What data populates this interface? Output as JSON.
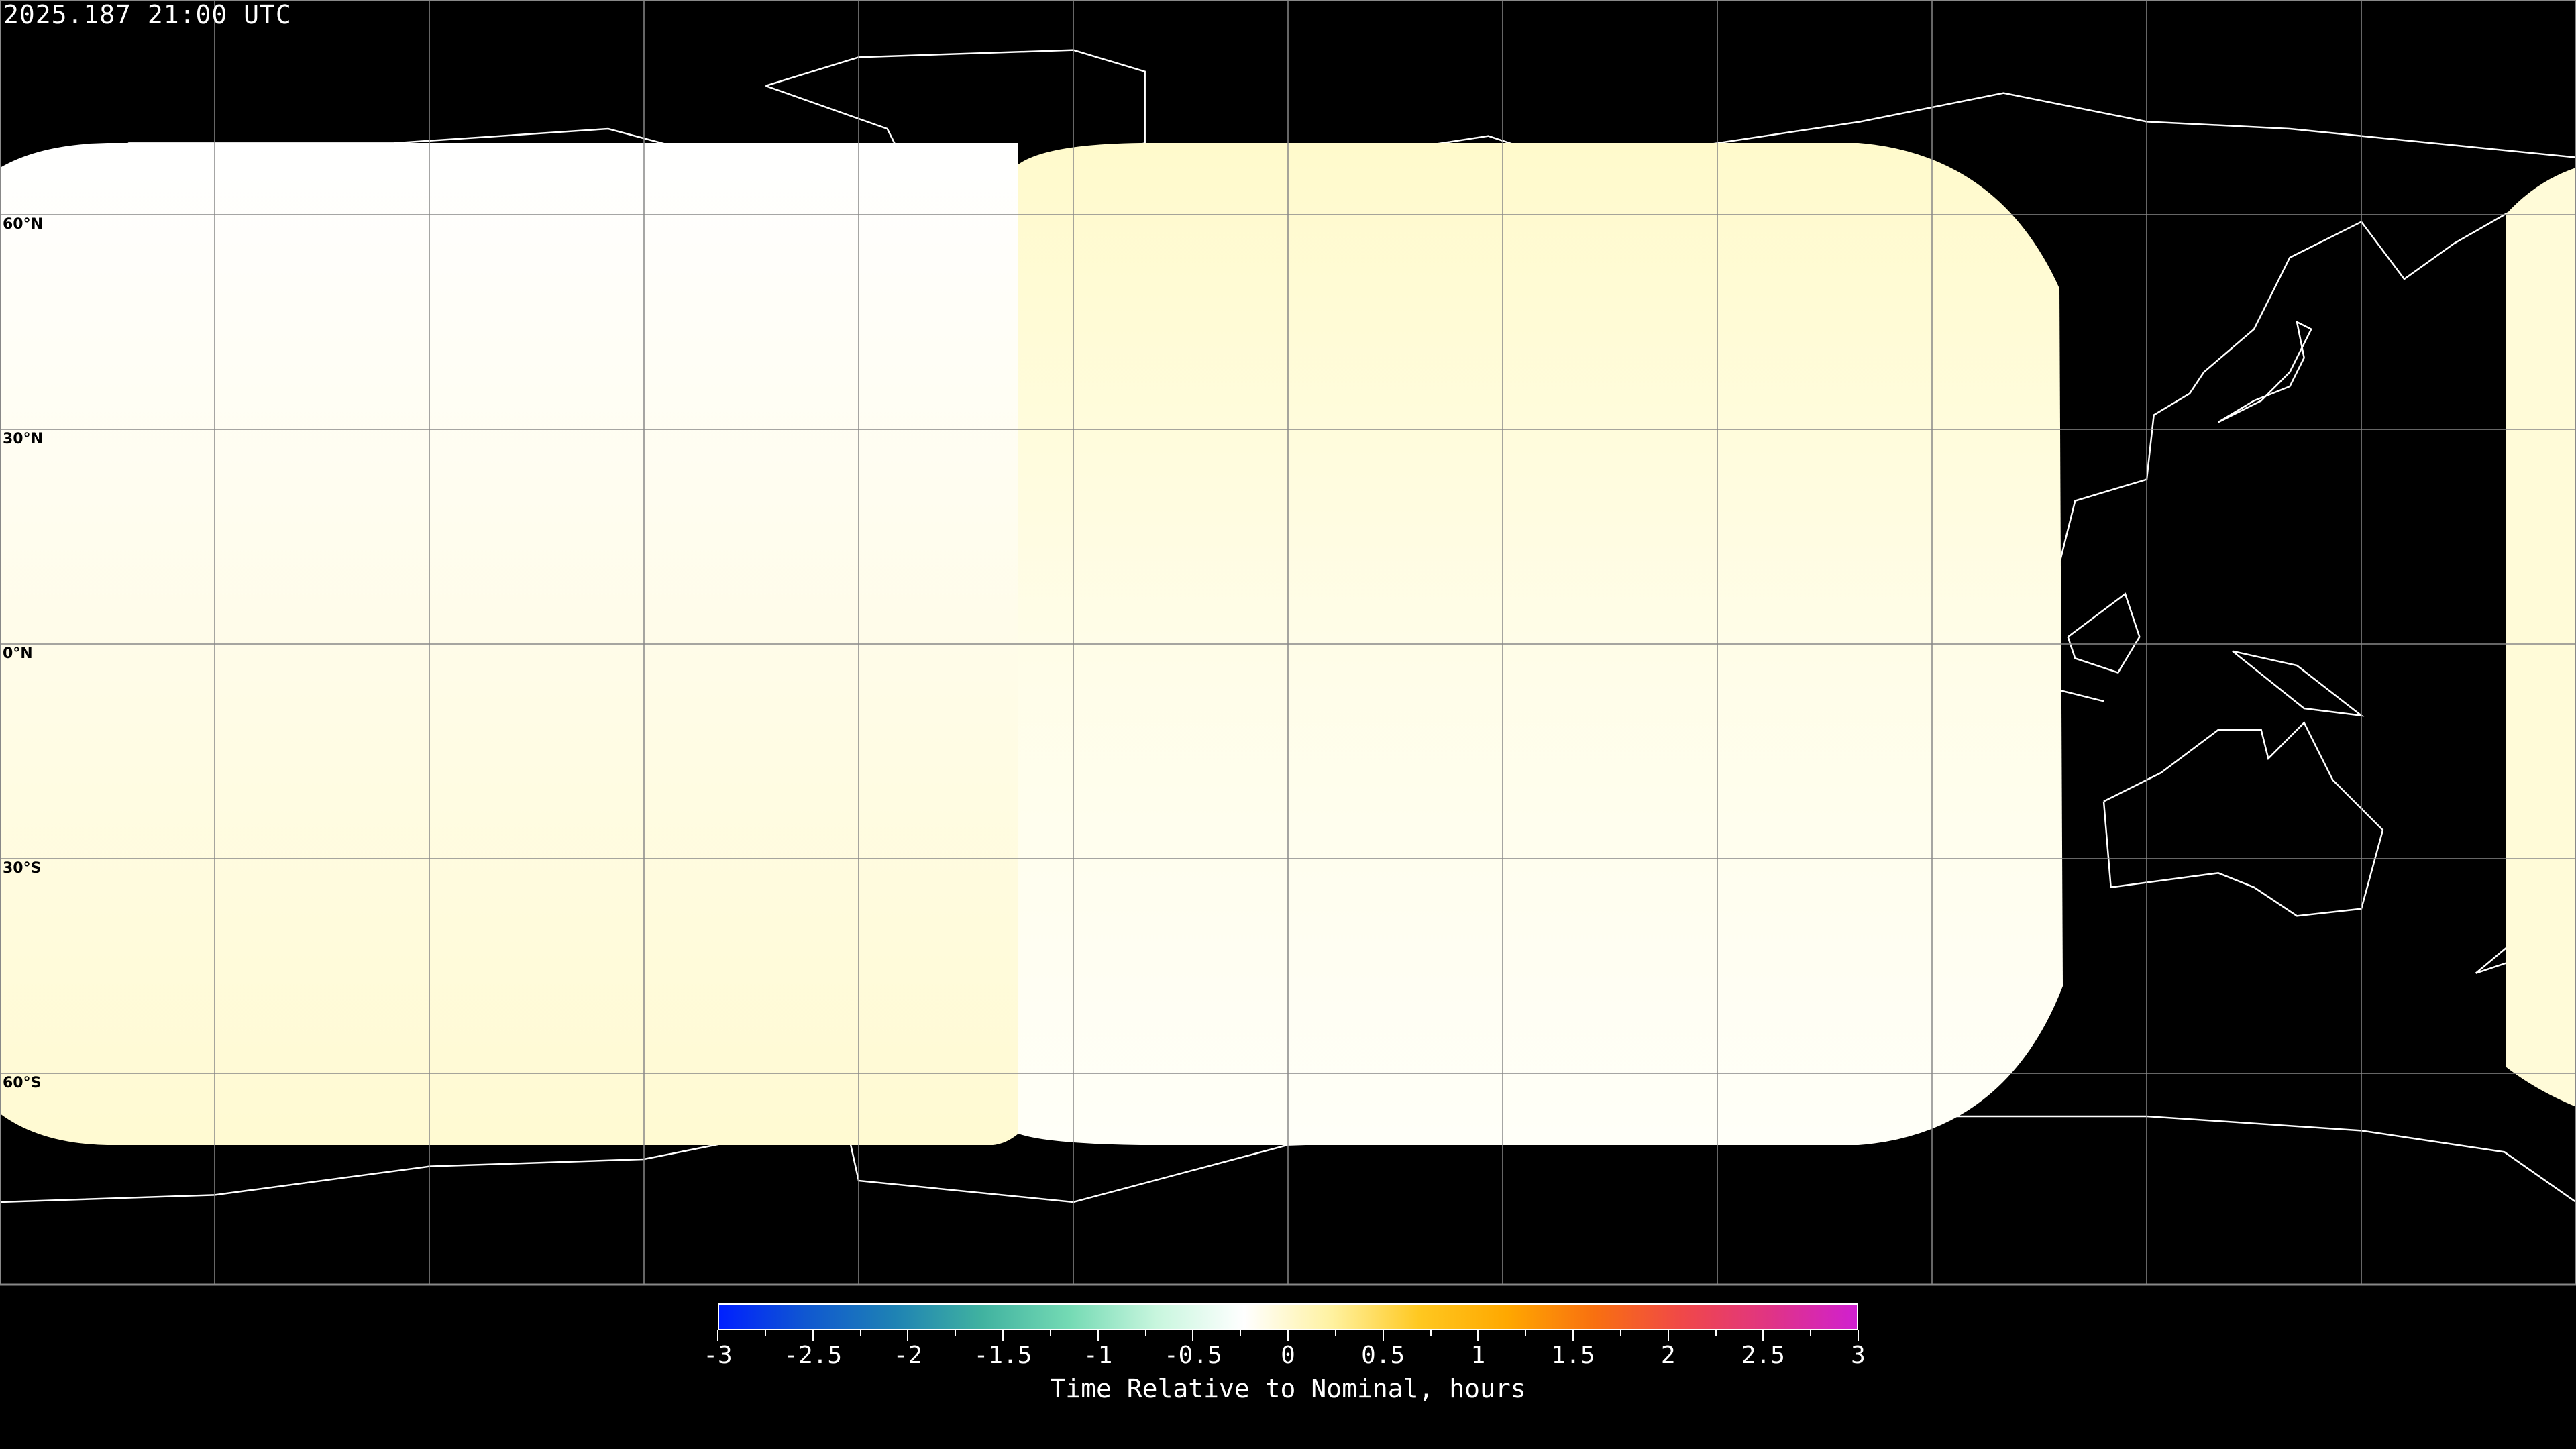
{
  "title": "2025.187 21:00 UTC",
  "map": {
    "projection": "equirectangular",
    "grid_spacing_degrees": 30,
    "latitude_labels": [
      "60°N",
      "30°N",
      "0°N",
      "30°S",
      "60°S"
    ],
    "coverage_colors": {
      "left": [
        "#ffffff",
        "#fffbd6"
      ],
      "middle": [
        "#fffbd0",
        "#fffff4"
      ],
      "right": "#fffbd8"
    }
  },
  "colorbar": {
    "title": "Time Relative to Nominal, hours",
    "range": [
      -3,
      3
    ],
    "tick_labels": [
      "-3",
      "-2.5",
      "-2",
      "-1.5",
      "-1",
      "-0.5",
      "0",
      "0.5",
      "1",
      "1.5",
      "2",
      "2.5",
      "3"
    ],
    "colors": [
      "#0020ff",
      "#1058d0",
      "#1e82b4",
      "#40b2a0",
      "#74dab4",
      "#c8f6de",
      "#ffffff",
      "#fff2a0",
      "#ffc820",
      "#ffa800",
      "#f87010",
      "#f04848",
      "#e03484",
      "#d020d0"
    ]
  }
}
